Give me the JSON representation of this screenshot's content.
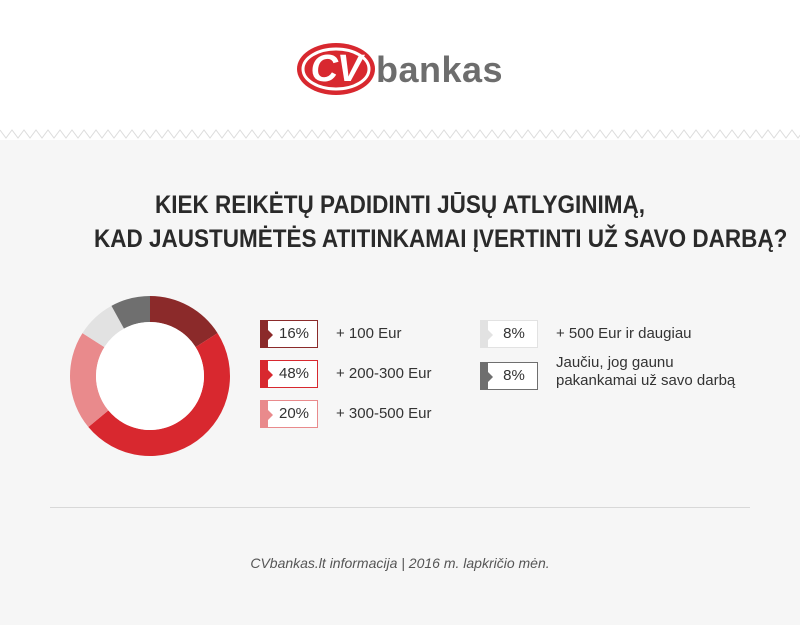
{
  "brand": {
    "badge_text": "CV",
    "word": "bankas",
    "colors": {
      "red": "#d8282f",
      "gray": "#6d6d6d"
    }
  },
  "chart_data": {
    "type": "pie",
    "title_lines": [
      "KIEK REIKĖTŲ PADIDINTI JŪSŲ ATLYGINIMĄ,",
      "KAD JAUSTUMĖTĖS ATITINKAMAI ĮVERTINTI UŽ SAVO DARBĄ?"
    ],
    "slices": [
      {
        "label": "+ 100 Eur",
        "value": 16,
        "pct_text": "16%",
        "color": "#8b2a2a"
      },
      {
        "label": "+ 200-300 Eur",
        "value": 48,
        "pct_text": "48%",
        "color": "#d8282f"
      },
      {
        "label": "+ 300-500 Eur",
        "value": 20,
        "pct_text": "20%",
        "color": "#e98a8c"
      },
      {
        "label": "+ 500 Eur ir daugiau",
        "value": 8,
        "pct_text": "8%",
        "color": "#e2e2e2"
      },
      {
        "label_lines": [
          "Jaučiu, jog gaunu",
          "pakankamai už savo darbą"
        ],
        "value": 8,
        "pct_text": "8%",
        "color": "#6f6f6f"
      }
    ]
  },
  "footer": {
    "source": "CVbankas.lt informacija | 2016 m. lapkričio mėn."
  }
}
